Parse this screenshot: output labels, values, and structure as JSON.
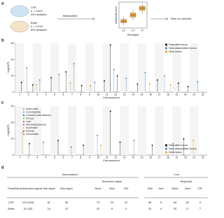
{
  "panel_a": {
    "label": "a",
    "csf": "CSF",
    "csf_n": "n = 2,602",
    "csf_analytes": "440 analytes",
    "brain": "Brain",
    "brain_n": "n = 1,016",
    "brain_analytes": "892 analytes",
    "metabolites": "Metabolites",
    "outcome": "New vs reported"
  },
  "chart_data": [
    {
      "type": "box",
      "ylabel": "Metabolite level",
      "xlabel": "Genotype",
      "categories": [
        "CC",
        "CT",
        "TT"
      ],
      "color": "#f0a030",
      "ylim": [
        0,
        10
      ],
      "boxes": [
        {
          "low": 1,
          "q1": 2,
          "median": 2.6,
          "q3": 3.3,
          "high": 4.5
        },
        {
          "low": 3,
          "q1": 4.2,
          "median": 5,
          "q3": 5.8,
          "high": 7
        },
        {
          "low": 5.5,
          "q1": 6.8,
          "median": 7.6,
          "q3": 8.4,
          "high": 9.6
        }
      ]
    },
    {
      "type": "scatter",
      "label": "b",
      "xlabel": "Chromosome",
      "ylabel": "−log10(P)",
      "xlim": [
        0.5,
        22.5
      ],
      "xticks": [
        1,
        2,
        3,
        4,
        5,
        6,
        7,
        8,
        9,
        10,
        11,
        12,
        13,
        14,
        15,
        16,
        17,
        18,
        19,
        20,
        21,
        22
      ],
      "ylim": [
        0,
        60
      ],
      "yticks": [
        0,
        20,
        40,
        60
      ],
      "legend": "top-right",
      "series": [
        {
          "name": "Reported locus",
          "color": "#222222",
          "x": [
            1.2,
            2.5,
            4.6,
            6.3,
            8.1,
            10.7,
            11.4,
            12.2,
            14.5,
            16.8,
            19.2,
            20.3
          ],
          "values": [
            12,
            9,
            18,
            25,
            8,
            14,
            58,
            20,
            10,
            15,
            11,
            7
          ]
        },
        {
          "name": "New association locus",
          "color": "#4a90c8",
          "x": [
            1.8,
            3.3,
            5.5,
            7.2,
            9.6,
            11.8,
            13.2,
            15.4,
            17.6,
            21.4
          ],
          "values": [
            30,
            15,
            22,
            35,
            12,
            28,
            17,
            24,
            20,
            13
          ]
        },
        {
          "name": "New locus",
          "color": "#f0a020",
          "x": [
            2.9,
            6.8,
            9.1,
            15.9,
            18.3
          ],
          "values": [
            9,
            11,
            8,
            10,
            9
          ]
        }
      ]
    },
    {
      "type": "scatter",
      "label": "c",
      "xlabel": "Chromosome",
      "ylabel": "−log10(P)",
      "xlim": [
        0.5,
        22.5
      ],
      "xticks": [
        1,
        2,
        3,
        4,
        5,
        6,
        7,
        8,
        9,
        10,
        11,
        12,
        13,
        14,
        15,
        16,
        17,
        18,
        19,
        20,
        21,
        22
      ],
      "ylim": [
        0,
        30
      ],
      "yticks": [
        0,
        10,
        20,
        30
      ],
      "legend": "bottom-right",
      "classes": [
        {
          "name": "Amino acid",
          "color": "#e8a33c"
        },
        {
          "name": "Carbohydrate",
          "color": "#7fb8e0"
        },
        {
          "name": "Cofactors and vitamins",
          "color": "#3d7ab8"
        },
        {
          "name": "Energy",
          "color": "#98c96a"
        },
        {
          "name": "Lipid",
          "color": "#e05a8a"
        },
        {
          "name": "Microbiota-derived",
          "color": "#a56cc1"
        },
        {
          "name": "Nucleotide",
          "color": "#f2d04a"
        },
        {
          "name": "Peptide",
          "color": "#8c6d3f"
        },
        {
          "name": "Xenobiotics",
          "color": "#999999"
        }
      ],
      "series": [
        {
          "name": "Reported locus",
          "color": "#222222",
          "x": [
            2.1,
            5.4,
            8.3,
            11.4,
            12.5,
            16.2,
            19.8
          ],
          "values": [
            7,
            9,
            6,
            27,
            8,
            6,
            10
          ]
        },
        {
          "name": "New association locus",
          "color": "#4a90c8",
          "x": [
            3.7,
            6.9,
            9.9,
            14.1,
            18.6
          ],
          "values": [
            8,
            5,
            12,
            9,
            7
          ]
        },
        {
          "name": "New locus",
          "color": "#f0a020",
          "x": [
            1.3,
            10.3,
            20.9
          ],
          "values": [
            14,
            6,
            9
          ]
        }
      ]
    }
  ],
  "panel_d": {
    "label": "d",
    "associations": "Associations",
    "loci": "Loci",
    "reported_region": "Reported region",
    "reported": "Reported",
    "headers": [
      "Tissue",
      "Total (independent signal)",
      "New signal",
      "New region",
      "Blood",
      "Urine",
      "CSF"
    ],
    "loci_headers": [
      "Total",
      "New",
      "Blood",
      "Urine",
      "CSF"
    ],
    "rows": [
      [
        "CSF",
        "115 (205)",
        "87",
        "30",
        "73",
        "23",
        "12",
        "96",
        "9",
        "84",
        "62",
        "0"
      ],
      [
        "Brain",
        "31 (32)",
        "14",
        "10",
        "19",
        "8",
        "4",
        "24",
        "4",
        "20",
        "17",
        "7"
      ]
    ]
  }
}
